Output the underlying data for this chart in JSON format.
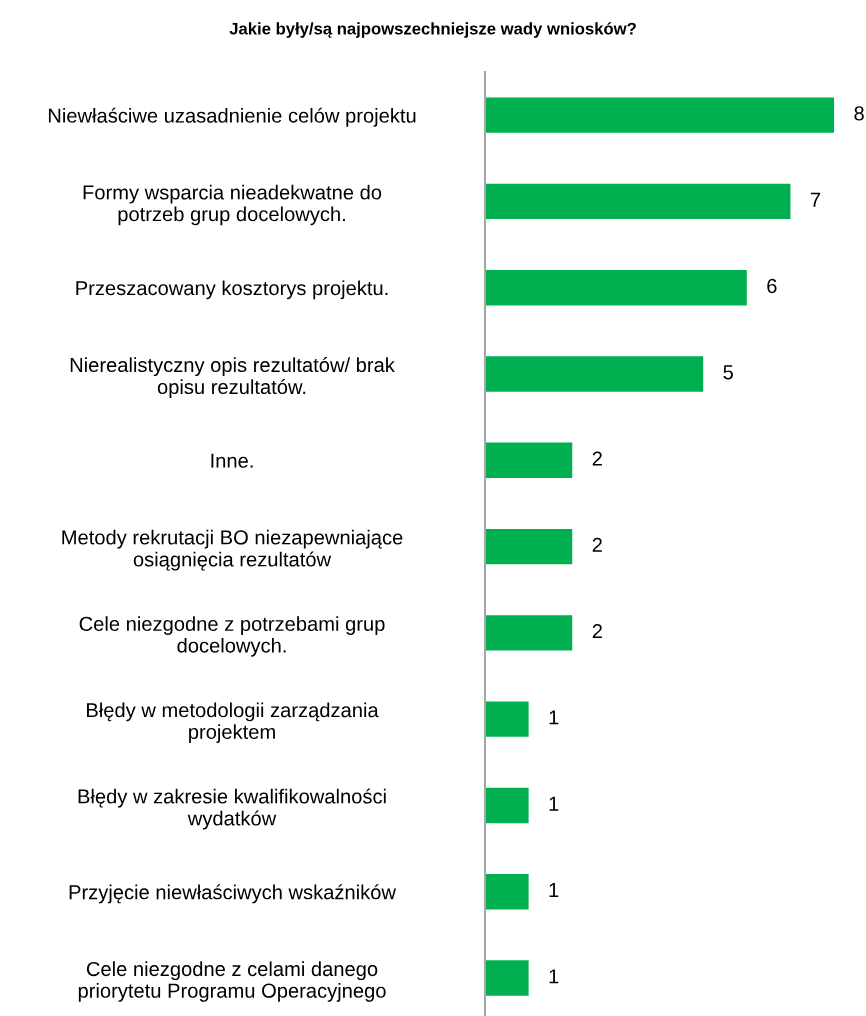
{
  "chart_data": {
    "type": "bar",
    "orientation": "horizontal",
    "title": "Jakie były/są najpowszechniejsze wady wniosków?",
    "categories": [
      "Niewłaściwe uzasadnienie celów projektu",
      "Formy wsparcia nieadekwatne do\npotrzeb grup docelowych.",
      "Przeszacowany kosztorys projektu.",
      "Nierealistyczny opis rezultatów/ brak\nopisu rezultatów.",
      "Inne.",
      "Metody rekrutacji BO niezapewniające\nosiągnięcia rezultatów",
      "Cele niezgodne z potrzebami grup\ndocelowych.",
      "Błędy w metodologii zarządzania\nprojektem",
      "Błędy w zakresie kwalifikowalności\nwydatków",
      "Przyjęcie niewłaściwych wskaźników",
      "Cele niezgodne z celami danego\npriorytetu Programu Operacyjnego"
    ],
    "values": [
      8,
      7,
      6,
      5,
      2,
      2,
      2,
      1,
      1,
      1,
      1
    ],
    "color": "#00b050",
    "data_labels": true,
    "tick_labels": "y",
    "grid": false,
    "legend": false
  }
}
